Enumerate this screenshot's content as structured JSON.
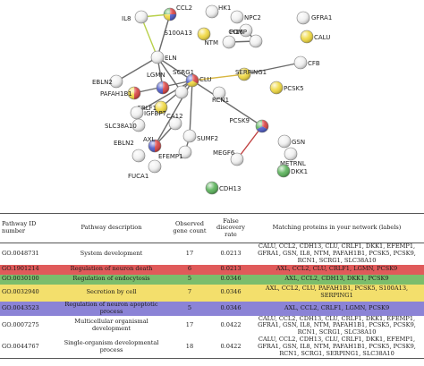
{
  "network": {
    "nodes": [
      {
        "id": "CCL2",
        "label": "CCL2",
        "colors": [
          "#d84040",
          "#4a58c8",
          "#f0d83c",
          "#57b157"
        ]
      },
      {
        "id": "IL8",
        "label": "IL8",
        "colors": [
          "#f0f0f0"
        ]
      },
      {
        "id": "HK1",
        "label": "HK1",
        "colors": [
          "#f0f0f0"
        ]
      },
      {
        "id": "NPC2",
        "label": "NPC2",
        "colors": [
          "#f0f0f0"
        ]
      },
      {
        "id": "GFRA1",
        "label": "GFRA1",
        "colors": [
          "#f0f0f0"
        ]
      },
      {
        "id": "PI16",
        "label": "PI16",
        "colors": [
          "#f0f0f0"
        ]
      },
      {
        "id": "S100A13",
        "label": "S100A13",
        "colors": [
          "#f0d83c"
        ]
      },
      {
        "id": "CALU",
        "label": "CALU",
        "colors": [
          "#f0d83c"
        ]
      },
      {
        "id": "NTM",
        "label": "NTM",
        "colors": [
          "#f0f0f0"
        ]
      },
      {
        "id": "COMP",
        "label": "COMP",
        "colors": [
          "#f0f0f0"
        ]
      },
      {
        "id": "ELN",
        "label": "ELN",
        "colors": [
          "#f0f0f0"
        ]
      },
      {
        "id": "EBLN2",
        "label": "EBLN2",
        "colors": [
          "#f0f0f0"
        ]
      },
      {
        "id": "CFB",
        "label": "CFB",
        "colors": [
          "#f0f0f0"
        ]
      },
      {
        "id": "SERPING1",
        "label": "SERPING1",
        "colors": [
          "#f0d83c"
        ]
      },
      {
        "id": "LGMN",
        "label": "LGMN",
        "colors": [
          "#d84040",
          "#4a58c8"
        ]
      },
      {
        "id": "CLU",
        "label": "CLU",
        "colors": [
          "#d84040",
          "#f0d83c",
          "#4a58c8"
        ]
      },
      {
        "id": "SCRG1",
        "label": "SCRG1",
        "colors": [
          "#f0f0f0"
        ]
      },
      {
        "id": "PAFAH1B1",
        "label": "PAFAH1B1",
        "colors": [
          "#d84040",
          "#f0d83c"
        ]
      },
      {
        "id": "PCSK5",
        "label": "PCSK5",
        "colors": [
          "#f0d83c"
        ]
      },
      {
        "id": "RCN1",
        "label": "RCN1",
        "colors": [
          "#f0f0f0"
        ]
      },
      {
        "id": "CRLF1",
        "label": "CRLF1",
        "colors": [
          "#f0d83c"
        ]
      },
      {
        "id": "IGFBP7",
        "label": "IGFBP7",
        "colors": [
          "#f0f0f0"
        ]
      },
      {
        "id": "SLC38A10",
        "label": "SLC38A10",
        "colors": [
          "#f0f0f0"
        ]
      },
      {
        "id": "CA12",
        "label": "CA12",
        "colors": [
          "#f0f0f0"
        ]
      },
      {
        "id": "PCSK9",
        "label": "PCSK9",
        "colors": [
          "#d84040",
          "#4a58c8",
          "#57b157"
        ]
      },
      {
        "id": "AXL",
        "label": "AXL",
        "colors": [
          "#d84040",
          "#4a58c8"
        ]
      },
      {
        "id": "SUMF2",
        "label": "SUMF2",
        "colors": [
          "#f0f0f0"
        ]
      },
      {
        "id": "GSN",
        "label": "GSN",
        "colors": [
          "#f0f0f0"
        ]
      },
      {
        "id": "EBLN2b",
        "label": "EBLN2",
        "colors": [
          "#f0f0f0"
        ]
      },
      {
        "id": "EFEMP1",
        "label": "EFEMP1",
        "colors": [
          "#f0f0f0"
        ]
      },
      {
        "id": "MEGF6",
        "label": "MEGF6",
        "colors": [
          "#f0f0f0"
        ]
      },
      {
        "id": "METRNL",
        "label": "METRNL",
        "colors": [
          "#f0f0f0"
        ]
      },
      {
        "id": "FUCA1",
        "label": "FUCA1",
        "colors": [
          "#f0f0f0"
        ]
      },
      {
        "id": "DKK1",
        "label": "DKK1",
        "colors": [
          "#57b157"
        ]
      },
      {
        "id": "CDH13",
        "label": "CDH13",
        "colors": [
          "#57b157"
        ]
      }
    ],
    "edges": [
      {
        "from": "CCL2",
        "to": "IL8",
        "color": "#b8d04a"
      },
      {
        "from": "IL8",
        "to": "ELN",
        "color": "#b8d04a"
      },
      {
        "from": "CCL2",
        "to": "ELN",
        "color": "#6b6b6b"
      },
      {
        "from": "ELN",
        "to": "EBLN2",
        "color": "#6b6b6b"
      },
      {
        "from": "ELN",
        "to": "LGMN",
        "color": "#6b6b6b"
      },
      {
        "from": "ELN",
        "to": "CLU",
        "color": "#6b6b6b"
      },
      {
        "from": "ELN",
        "to": "SCRG1",
        "color": "#6b6b6b"
      },
      {
        "from": "SERPING1",
        "to": "CLU",
        "color": "#d8b640"
      },
      {
        "from": "SERPING1",
        "to": "CFB",
        "color": "#6b6b6b"
      },
      {
        "from": "CLU",
        "to": "PAFAH1B1",
        "color": "#6b6b6b"
      },
      {
        "from": "CLU",
        "to": "IGFBP7",
        "color": "#6b6b6b"
      },
      {
        "from": "CLU",
        "to": "CRLF1",
        "color": "#6b6b6b"
      },
      {
        "from": "CLU",
        "to": "AXL",
        "color": "#6b6b6b"
      },
      {
        "from": "CLU",
        "to": "PCSK9",
        "color": "#6b6b6b"
      },
      {
        "from": "CLU",
        "to": "SUMF2",
        "color": "#6b6b6b"
      },
      {
        "from": "NTM",
        "to": "COMP",
        "color": "#6b6b6b"
      },
      {
        "from": "PI16",
        "to": "COMP",
        "color": "#6b6b6b"
      },
      {
        "from": "PCSK9",
        "to": "MEGF6",
        "color": "#c04040"
      },
      {
        "from": "SUMF2",
        "to": "EFEMP1",
        "color": "#6b6b6b"
      },
      {
        "from": "AXL",
        "to": "CA12",
        "color": "#6b6b6b"
      },
      {
        "from": "IGFBP7",
        "to": "SLC38A10",
        "color": "#6b6b6b"
      }
    ]
  },
  "table": {
    "headers": {
      "pathway_id": "Pathway ID number",
      "description": "Pathway description",
      "observed": "Observed gene count",
      "fdr": "False discovery rate",
      "matching": "Matching proteins in your network (labels)"
    },
    "rows": [
      {
        "id": "GO.0048731",
        "description": "System development",
        "observed": "17",
        "fdr": "0.0213",
        "matching": "CALU, CCL2, CDH13, CLU, CRLF1, DKK1, EFEMP1, GFRA1, GSN, IL8, NTM, PAFAH1B1, PCSK5, PCSK9, RCN1, SCRG1, SLC38A10",
        "bg": "#ffffff",
        "size": "tall"
      },
      {
        "id": "GO.1901214",
        "description": "Regulation of neuron death",
        "observed": "6",
        "fdr": "0.0213",
        "matching": "AXL, CCL2, CLU, CRLF1, LGMN, PCSK9",
        "bg": "#e05a5a",
        "size": "short"
      },
      {
        "id": "GO.0030100",
        "description": "Regulation of endocytosis",
        "observed": "5",
        "fdr": "0.0346",
        "matching": "AXL, CCL2, CDH13, DKK1, PCSK9",
        "bg": "#7bbd6c",
        "size": "short"
      },
      {
        "id": "GO.0032940",
        "description": "Secretion by cell",
        "observed": "7",
        "fdr": "0.0346",
        "matching": "AXL, CCL2, CLU, PAFAH1B1, PCSK5, S100A13, SERPING1",
        "bg": "#f3df6c",
        "size": "tall"
      },
      {
        "id": "GO.0043523",
        "description": "Regulation of neuron apoptotic process",
        "observed": "5",
        "fdr": "0.0346",
        "matching": "AXL, CCL2, CRLF1, LGMN, PCSK9",
        "bg": "#8b83d6",
        "size": "short"
      },
      {
        "id": "GO.0007275",
        "description": "Multicellular organismal development",
        "observed": "17",
        "fdr": "0.0422",
        "matching": "CALU, CCL2, CDH13, CLU, CRLF1, DKK1, EFEMP1, GFRA1, GSN, IL8, NTM, PAFAH1B1, PCSK5, PCSK9, RCN1, SCRG1, SLC38A10",
        "bg": "#ffffff",
        "size": "mid"
      },
      {
        "id": "GO.0044767",
        "description": "Single-organism developmental process",
        "observed": "18",
        "fdr": "0.0422",
        "matching": "CALU, CCL2, CDH13, CLU, CRLF1, DKK1, EFEMP1, GFRA1, GSN, IL8, NTM, PAFAH1B1, PCSK5, PCSK9, RCN1, SCRG1, SERPING1, SLC38A10",
        "bg": "#ffffff",
        "size": "mid"
      }
    ]
  }
}
